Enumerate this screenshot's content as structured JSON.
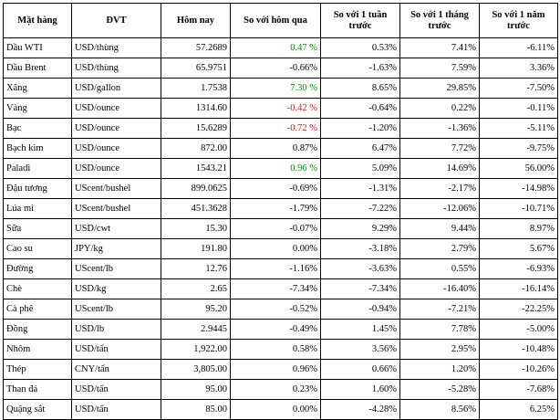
{
  "headers": [
    "Mặt hàng",
    "ĐVT",
    "Hôm nay",
    "So với hôm qua",
    "So với 1 tuần trước",
    "So với 1 tháng trước",
    "So với 1 năm trước"
  ],
  "colors": {
    "up": "#0a8a0a",
    "down": "#cc2222",
    "neutral": "#000000"
  },
  "rows": [
    {
      "name": "Dầu WTI",
      "unit": "USD/thùng",
      "today": "57.2689",
      "day": "0.47 %",
      "day_color": "up",
      "week": "0.53%",
      "month": "7.41%",
      "year": "-6.11%"
    },
    {
      "name": "Dầu Brent",
      "unit": "USD/thùng",
      "today": "65.9751",
      "day": "-0.66%",
      "day_color": "neutral",
      "week": "-1.63%",
      "month": "7.59%",
      "year": "3.36%"
    },
    {
      "name": "Xăng",
      "unit": "USD/gallon",
      "today": "1.7538",
      "day": "7.30 %",
      "day_color": "up",
      "week": "8.65%",
      "month": "29.85%",
      "year": "-7.50%"
    },
    {
      "name": "Vàng",
      "unit": "USD/ounce",
      "today": "1314.60",
      "day": "-0.42 %",
      "day_color": "down",
      "week": "-0.64%",
      "month": "0.22%",
      "year": "-0.11%"
    },
    {
      "name": "Bạc",
      "unit": "USD/ounce",
      "today": "15.6289",
      "day": "-0.72 %",
      "day_color": "down",
      "week": "-1.20%",
      "month": "-1.36%",
      "year": "-5.11%"
    },
    {
      "name": "Bạch kim",
      "unit": "USD/ounce",
      "today": "872.00",
      "day": "0.87%",
      "day_color": "neutral",
      "week": "6.47%",
      "month": "7.72%",
      "year": "-9.75%"
    },
    {
      "name": "Paladi",
      "unit": "USD/ounce",
      "today": "1543.21",
      "day": "0.96 %",
      "day_color": "up",
      "week": "5.09%",
      "month": "14.69%",
      "year": "56.00%"
    },
    {
      "name": "Đậu tương",
      "unit": "UScent/bushel",
      "today": "899.0625",
      "day": "-0.69%",
      "day_color": "neutral",
      "week": "-1.31%",
      "month": "-2.17%",
      "year": "-14.98%"
    },
    {
      "name": "Lúa mì",
      "unit": "UScent/bushel",
      "today": "451.3628",
      "day": "-1.79%",
      "day_color": "neutral",
      "week": "-7.22%",
      "month": "-12.06%",
      "year": "-10.71%"
    },
    {
      "name": "Sữa",
      "unit": "USD/cwt",
      "today": "15.30",
      "day": "-0.07%",
      "day_color": "neutral",
      "week": "9.29%",
      "month": "9.44%",
      "year": "8.97%"
    },
    {
      "name": "Cao su",
      "unit": "JPY/kg",
      "today": "191.80",
      "day": "0.00%",
      "day_color": "neutral",
      "week": "-3.18%",
      "month": "2.79%",
      "year": "5.67%"
    },
    {
      "name": "Đường",
      "unit": "UScent/lb",
      "today": "12.76",
      "day": "-1.16%",
      "day_color": "neutral",
      "week": "-3.63%",
      "month": "0.55%",
      "year": "-6.93%"
    },
    {
      "name": "Chè",
      "unit": "USD/kg",
      "today": "2.65",
      "day": "-7.34%",
      "day_color": "neutral",
      "week": "-7.34%",
      "month": "-16.40%",
      "year": "-16.14%"
    },
    {
      "name": "Cà phê",
      "unit": "UScent/lb",
      "today": "95.20",
      "day": "-0.52%",
      "day_color": "neutral",
      "week": "-0.94%",
      "month": "-7.21%",
      "year": "-22.25%"
    },
    {
      "name": "Đồng",
      "unit": "USD/lb",
      "today": "2.9445",
      "day": "-0.49%",
      "day_color": "neutral",
      "week": "1.45%",
      "month": "7.78%",
      "year": "-5.00%"
    },
    {
      "name": "Nhôm",
      "unit": "USD/tấn",
      "today": "1,922.00",
      "day": "0.58%",
      "day_color": "neutral",
      "week": "3.56%",
      "month": "2.95%",
      "year": "-10.48%"
    },
    {
      "name": "Thép",
      "unit": "CNY/tấn",
      "today": "3,805.00",
      "day": "0.96%",
      "day_color": "neutral",
      "week": "0.66%",
      "month": "1.20%",
      "year": "-10.26%"
    },
    {
      "name": "Than đá",
      "unit": "USD/tấn",
      "today": "95.00",
      "day": "0.23%",
      "day_color": "neutral",
      "week": "1.60%",
      "month": "-5.28%",
      "year": "-7.68%"
    },
    {
      "name": "Quặng sắt",
      "unit": "USD/tấn",
      "today": "85.00",
      "day": "0.00%",
      "day_color": "neutral",
      "week": "-4.28%",
      "month": "8.56%",
      "year": "6.25%"
    }
  ]
}
